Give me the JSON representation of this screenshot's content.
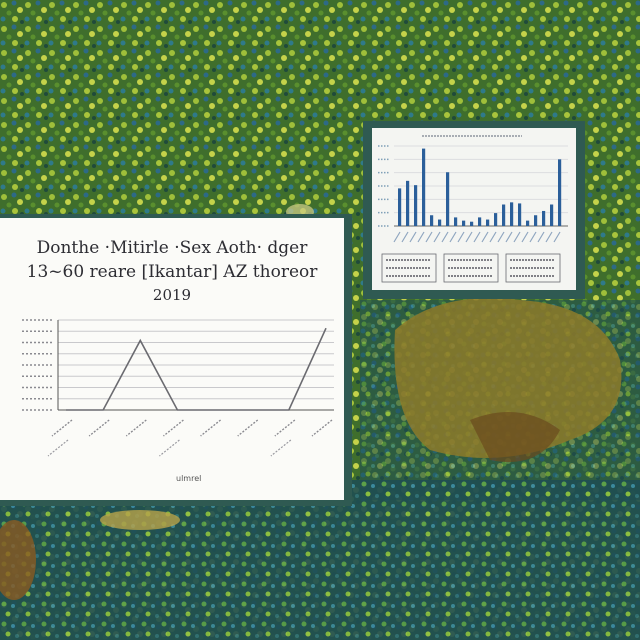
{
  "scene": {
    "description_colors": {
      "foliage_dark": "#1f4a3a",
      "foliage_mid": "#4f7d2a",
      "foliage_light": "#b9c93a",
      "foliage_blue": "#2d6a86",
      "dry_leaves": "#8d7a2a",
      "board_frame": "#2f5a52",
      "paper": "#fbfbf8"
    }
  },
  "left_chart": {
    "title_lines": [
      "Donthe ·Mitirle ·Sex Aoth· dger",
      "13~60 reare [Ikantar] AZ thoreor",
      "2019"
    ],
    "xlabel": "ulmrel",
    "chart_data": {
      "type": "line",
      "categories": [
        "a",
        "b",
        "c",
        "d",
        "e",
        "f",
        "g",
        "h"
      ],
      "series": [
        {
          "values": [
            0,
            0,
            0.85,
            0,
            0,
            0,
            0,
            1.0
          ]
        }
      ],
      "ylim": [
        0,
        1.1
      ],
      "grid": true
    },
    "accent_color": "#6b6b70"
  },
  "right_chart": {
    "chart_data": {
      "type": "bar",
      "categories": [
        "1",
        "2",
        "3",
        "4",
        "5",
        "6",
        "7",
        "8",
        "9",
        "10",
        "11",
        "12",
        "13",
        "14",
        "15",
        "16",
        "17",
        "18",
        "19",
        "20",
        "21"
      ],
      "values": [
        0.35,
        0.42,
        0.38,
        0.72,
        0.1,
        0.06,
        0.5,
        0.08,
        0.05,
        0.04,
        0.08,
        0.06,
        0.12,
        0.2,
        0.22,
        0.21,
        0.05,
        0.1,
        0.14,
        0.2,
        0.62
      ],
      "ylim": [
        0,
        0.8
      ],
      "grid": true
    },
    "bar_color": "#2b5f9a",
    "legend_boxes": 3
  }
}
